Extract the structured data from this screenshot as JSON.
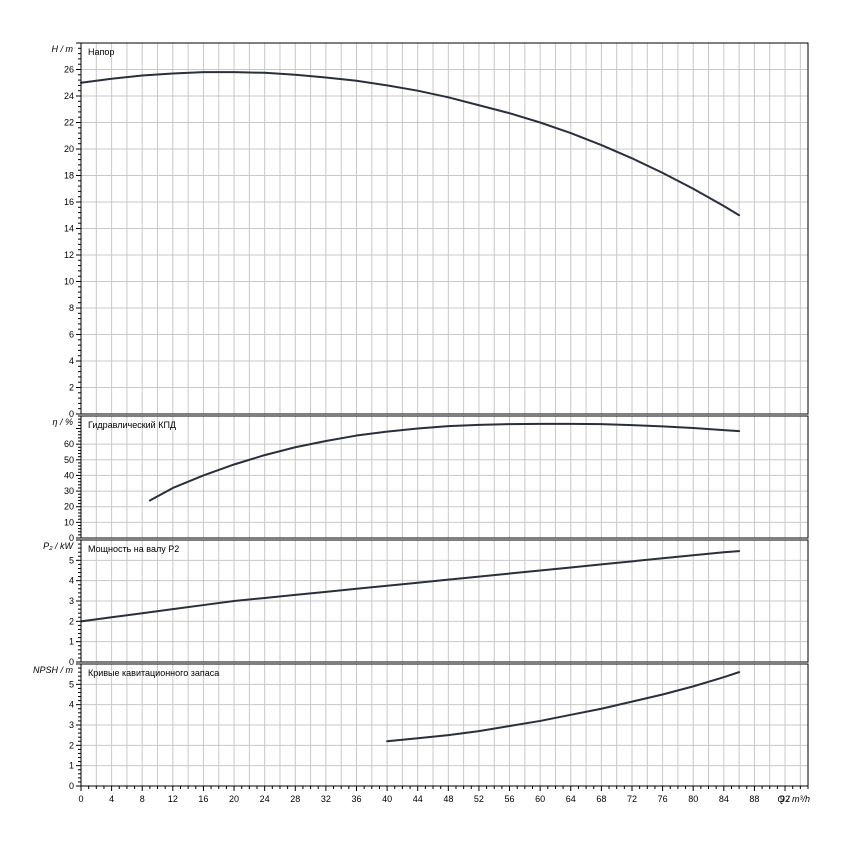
{
  "chart_data": [
    {
      "type": "line",
      "title": "Напор",
      "ylabel": "H / m",
      "ylim": [
        0,
        28
      ],
      "yticks": [
        0,
        2,
        4,
        6,
        8,
        10,
        12,
        14,
        16,
        18,
        20,
        22,
        24,
        26
      ],
      "series": [
        {
          "color": "#2b2f3a",
          "x": [
            0,
            4,
            8,
            12,
            16,
            20,
            24,
            28,
            32,
            36,
            40,
            44,
            48,
            52,
            56,
            60,
            64,
            68,
            72,
            76,
            80,
            84,
            86
          ],
          "y": [
            25.0,
            25.3,
            25.55,
            25.7,
            25.8,
            25.8,
            25.75,
            25.6,
            25.4,
            25.15,
            24.8,
            24.4,
            23.9,
            23.3,
            22.7,
            22.0,
            21.2,
            20.3,
            19.3,
            18.2,
            17.0,
            15.7,
            15.0
          ]
        }
      ]
    },
    {
      "type": "line",
      "title": "Гидравлический КПД",
      "ylabel": "η / %",
      "ylim": [
        0,
        78
      ],
      "yticks": [
        0,
        10,
        20,
        30,
        40,
        50,
        60
      ],
      "series": [
        {
          "color": "#2b2f3a",
          "x": [
            9,
            12,
            16,
            20,
            24,
            28,
            32,
            36,
            40,
            44,
            48,
            52,
            56,
            60,
            64,
            68,
            72,
            76,
            80,
            84,
            86
          ],
          "y": [
            24,
            32,
            40,
            47,
            53,
            58,
            62,
            65.5,
            68,
            70,
            71.5,
            72.3,
            72.8,
            73.0,
            73.0,
            72.8,
            72.2,
            71.4,
            70.3,
            69.0,
            68.3
          ]
        }
      ]
    },
    {
      "type": "line",
      "title": "Мощность на валу P2",
      "ylabel": "P₂ / kW",
      "ylim": [
        0,
        6
      ],
      "yticks": [
        0,
        1,
        2,
        3,
        4,
        5
      ],
      "series": [
        {
          "color": "#2b2f3a",
          "x": [
            0,
            4,
            8,
            12,
            16,
            20,
            24,
            28,
            32,
            36,
            40,
            44,
            48,
            52,
            56,
            60,
            64,
            68,
            72,
            76,
            80,
            84,
            86
          ],
          "y": [
            2.0,
            2.2,
            2.4,
            2.6,
            2.8,
            3.0,
            3.15,
            3.3,
            3.45,
            3.6,
            3.75,
            3.9,
            4.05,
            4.2,
            4.35,
            4.5,
            4.65,
            4.8,
            4.95,
            5.1,
            5.25,
            5.4,
            5.45
          ]
        }
      ]
    },
    {
      "type": "line",
      "title": "Кривые кавитационного запаса",
      "ylabel": "NPSH / m",
      "xlabel": "Q / m³/h",
      "xlim": [
        0,
        95
      ],
      "xticks": [
        0,
        4,
        8,
        12,
        16,
        20,
        24,
        28,
        32,
        36,
        40,
        44,
        48,
        52,
        56,
        60,
        64,
        68,
        72,
        76,
        80,
        84,
        88,
        92
      ],
      "ylim": [
        0,
        6
      ],
      "yticks": [
        0,
        1,
        2,
        3,
        4,
        5
      ],
      "series": [
        {
          "color": "#2b2f3a",
          "x": [
            40,
            44,
            48,
            52,
            56,
            60,
            64,
            68,
            72,
            76,
            80,
            84,
            86
          ],
          "y": [
            2.2,
            2.35,
            2.5,
            2.7,
            2.95,
            3.2,
            3.5,
            3.8,
            4.15,
            4.5,
            4.9,
            5.35,
            5.6
          ]
        }
      ]
    }
  ]
}
